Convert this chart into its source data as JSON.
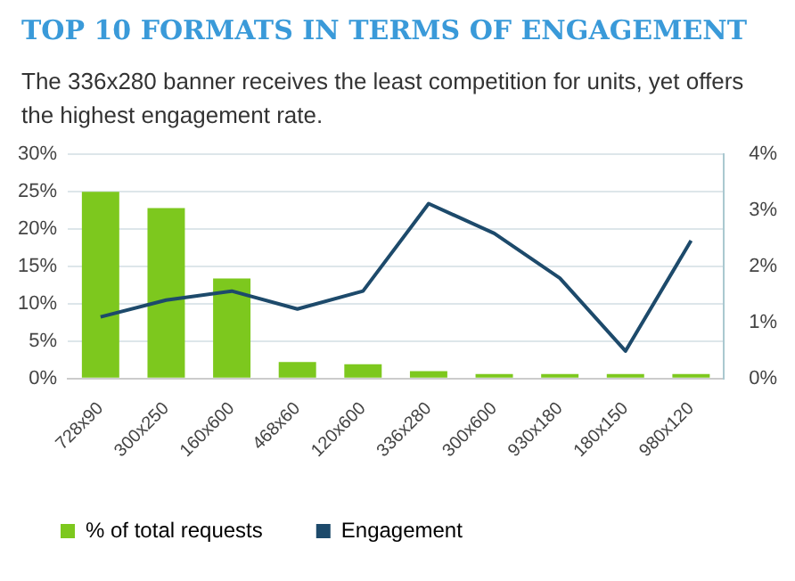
{
  "chart_data": {
    "type": "bar",
    "title": "TOP 10 FORMATS IN TERMS OF ENGAGEMENT",
    "subtitle": "The 336x280 banner receives the least competition for units, yet offers the highest engagement rate.",
    "categories": [
      "728x90",
      "300x250",
      "160x600",
      "468x60",
      "120x600",
      "336x280",
      "300x600",
      "930x180",
      "180x150",
      "980x120"
    ],
    "series": [
      {
        "name": "% of total requests",
        "color": "#7dc81e",
        "values": [
          25,
          22.8,
          13.4,
          2.2,
          1.9,
          1.0,
          0.6,
          0.6,
          0.6,
          0.6
        ]
      },
      {
        "name": "Engagement",
        "type": "line",
        "axis": "y2",
        "color": "#1d4a6b",
        "values": [
          1.1,
          1.4,
          1.56,
          1.24,
          1.56,
          3.12,
          2.59,
          1.79,
          0.49,
          2.46
        ]
      }
    ],
    "ylim": [
      0,
      30
    ],
    "yticks": [
      {
        "value": 0,
        "label": "0%"
      },
      {
        "value": 5,
        "label": "5%"
      },
      {
        "value": 10,
        "label": "10%"
      },
      {
        "value": 15,
        "label": "15%"
      },
      {
        "value": 20,
        "label": "20%"
      },
      {
        "value": 25,
        "label": "25%"
      },
      {
        "value": 30,
        "label": "30%"
      }
    ],
    "y2lim": [
      0,
      4
    ],
    "y2ticks": [
      {
        "value": 0,
        "label": "0%"
      },
      {
        "value": 1,
        "label": "1%"
      },
      {
        "value": 2,
        "label": "2%"
      },
      {
        "value": 3,
        "label": "3%"
      },
      {
        "value": 4,
        "label": "4%"
      }
    ],
    "grid": "y",
    "legend": "bottom",
    "marker": "none"
  }
}
